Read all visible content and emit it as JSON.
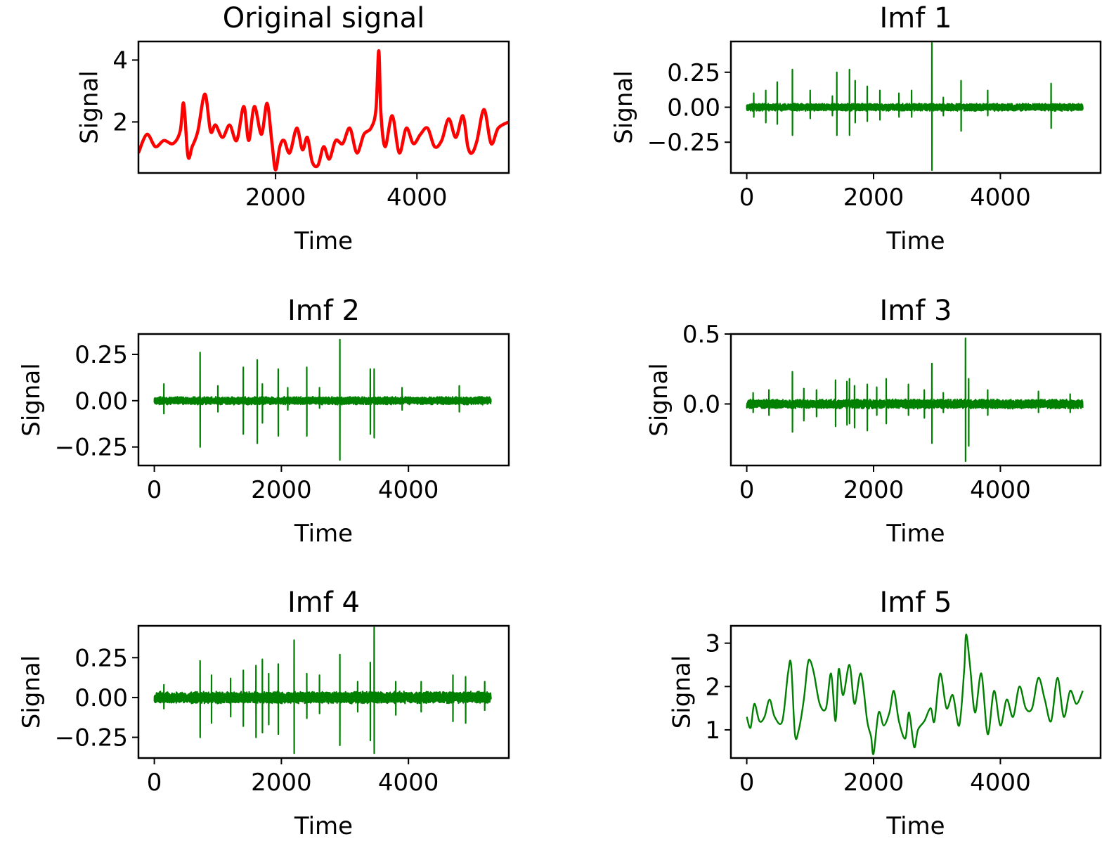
{
  "figure": {
    "line_colors": {
      "original": "#ff0000",
      "imf": "#008000"
    }
  },
  "chart_data": [
    {
      "type": "line",
      "title": "Original signal",
      "xlabel": "Time",
      "ylabel": "Signal",
      "color": "#ff0000",
      "xlim": [
        60,
        5300
      ],
      "ylim": [
        0.35,
        4.6
      ],
      "xticks": [
        2000,
        4000
      ],
      "xtick_labels": [
        "2000",
        "4000"
      ],
      "yticks": [
        2,
        4
      ],
      "ytick_labels": [
        "2",
        "4"
      ],
      "x_start": 60,
      "series": [
        {
          "name": "Original signal",
          "kind": "smooth",
          "x": [
            60,
            180,
            300,
            420,
            550,
            650,
            700,
            760,
            820,
            900,
            1000,
            1080,
            1150,
            1250,
            1350,
            1450,
            1550,
            1620,
            1700,
            1800,
            1880,
            1950,
            2000,
            2060,
            2120,
            2200,
            2300,
            2380,
            2450,
            2520,
            2600,
            2680,
            2760,
            2850,
            2950,
            3050,
            3150,
            3250,
            3350,
            3420,
            3460,
            3490,
            3550,
            3650,
            3750,
            3850,
            3950,
            4050,
            4150,
            4250,
            4350,
            4450,
            4550,
            4650,
            4720,
            4780,
            4850,
            4950,
            5050,
            5150,
            5300
          ],
          "y": [
            1.0,
            1.6,
            1.2,
            1.4,
            1.3,
            1.7,
            2.6,
            0.9,
            1.2,
            1.7,
            2.9,
            1.7,
            1.9,
            1.5,
            1.9,
            1.4,
            2.5,
            1.4,
            2.5,
            1.6,
            2.6,
            1.3,
            0.45,
            1.2,
            1.4,
            1.0,
            1.8,
            1.1,
            1.5,
            0.7,
            0.6,
            1.2,
            0.8,
            1.4,
            1.3,
            1.8,
            1.0,
            1.6,
            1.8,
            2.4,
            4.3,
            2.3,
            1.2,
            2.2,
            1.0,
            1.8,
            1.3,
            1.6,
            1.8,
            1.2,
            1.4,
            2.1,
            1.5,
            2.2,
            1.2,
            1.0,
            1.4,
            2.4,
            1.3,
            1.8,
            2.0
          ]
        }
      ]
    },
    {
      "type": "line",
      "title": "Imf 1",
      "xlabel": "Time",
      "ylabel": "Signal",
      "color": "#008000",
      "xlim": [
        -250,
        5580
      ],
      "ylim": [
        -0.47,
        0.47
      ],
      "xticks": [
        0,
        2000,
        4000
      ],
      "xtick_labels": [
        "0",
        "2000",
        "4000"
      ],
      "yticks": [
        -0.25,
        0,
        0.25
      ],
      "ytick_labels": [
        "−0.25",
        "0.00",
        "0.25"
      ],
      "n_points": 5300,
      "noise_amp": 0.02,
      "seed": 11,
      "spikes": [
        [
          110,
          0.1,
          -0.07
        ],
        [
          300,
          0.12,
          -0.11
        ],
        [
          480,
          0.18,
          -0.12
        ],
        [
          720,
          0.27,
          -0.2
        ],
        [
          1000,
          0.12,
          -0.08
        ],
        [
          1350,
          0.08,
          -0.06
        ],
        [
          1420,
          0.25,
          -0.2
        ],
        [
          1620,
          0.27,
          -0.2
        ],
        [
          1710,
          0.19,
          -0.11
        ],
        [
          1900,
          0.15,
          -0.1
        ],
        [
          2100,
          0.12,
          -0.09
        ],
        [
          2400,
          0.1,
          -0.07
        ],
        [
          2600,
          0.12,
          -0.07
        ],
        [
          2920,
          0.46,
          -0.45
        ],
        [
          3100,
          0.07,
          -0.06
        ],
        [
          3380,
          0.19,
          -0.17
        ],
        [
          3800,
          0.12,
          -0.06
        ],
        [
          4800,
          0.17,
          -0.15
        ]
      ]
    },
    {
      "type": "line",
      "title": "Imf 2",
      "xlabel": "Time",
      "ylabel": "Signal",
      "color": "#008000",
      "xlim": [
        -250,
        5580
      ],
      "ylim": [
        -0.35,
        0.36
      ],
      "xticks": [
        0,
        2000,
        4000
      ],
      "xtick_labels": [
        "0",
        "2000",
        "4000"
      ],
      "yticks": [
        -0.25,
        0,
        0.25
      ],
      "ytick_labels": [
        "−0.25",
        "0.00",
        "0.25"
      ],
      "n_points": 5300,
      "noise_amp": 0.016,
      "seed": 23,
      "spikes": [
        [
          150,
          0.09,
          -0.07
        ],
        [
          720,
          0.26,
          -0.25
        ],
        [
          1000,
          0.08,
          -0.06
        ],
        [
          1400,
          0.18,
          -0.18
        ],
        [
          1620,
          0.22,
          -0.23
        ],
        [
          1700,
          0.09,
          -0.12
        ],
        [
          1950,
          0.17,
          -0.19
        ],
        [
          2100,
          0.07,
          -0.05
        ],
        [
          2400,
          0.18,
          -0.19
        ],
        [
          2600,
          0.07,
          -0.04
        ],
        [
          2920,
          0.33,
          -0.32
        ],
        [
          3400,
          0.17,
          -0.18
        ],
        [
          3460,
          0.17,
          -0.2
        ],
        [
          3900,
          0.07,
          -0.05
        ],
        [
          4800,
          0.08,
          -0.06
        ]
      ]
    },
    {
      "type": "line",
      "title": "Imf 3",
      "xlabel": "Time",
      "ylabel": "Signal",
      "color": "#008000",
      "xlim": [
        -250,
        5580
      ],
      "ylim": [
        -0.44,
        0.5
      ],
      "xticks": [
        0,
        2000,
        4000
      ],
      "xtick_labels": [
        "0",
        "2000",
        "4000"
      ],
      "yticks": [
        0,
        0.5
      ],
      "ytick_labels": [
        "0.0",
        "0.5"
      ],
      "n_points": 5300,
      "noise_amp": 0.025,
      "seed": 37,
      "spikes": [
        [
          100,
          0.08,
          -0.06
        ],
        [
          350,
          0.1,
          -0.08
        ],
        [
          720,
          0.23,
          -0.2
        ],
        [
          900,
          0.11,
          -0.12
        ],
        [
          1100,
          0.1,
          -0.09
        ],
        [
          1400,
          0.17,
          -0.16
        ],
        [
          1580,
          0.16,
          -0.15
        ],
        [
          1620,
          0.18,
          -0.14
        ],
        [
          1700,
          0.13,
          -0.17
        ],
        [
          1900,
          0.14,
          -0.19
        ],
        [
          2050,
          0.12,
          -0.08
        ],
        [
          2200,
          0.18,
          -0.14
        ],
        [
          2550,
          0.14,
          -0.08
        ],
        [
          2800,
          0.1,
          -0.1
        ],
        [
          2920,
          0.29,
          -0.28
        ],
        [
          3100,
          0.08,
          -0.06
        ],
        [
          3450,
          0.47,
          -0.41
        ],
        [
          3500,
          0.18,
          -0.3
        ],
        [
          3800,
          0.1,
          -0.08
        ],
        [
          4600,
          0.09,
          -0.06
        ],
        [
          5100,
          0.07,
          -0.06
        ]
      ]
    },
    {
      "type": "line",
      "title": "Imf 4",
      "xlabel": "Time",
      "ylabel": "Signal",
      "color": "#008000",
      "xlim": [
        -250,
        5580
      ],
      "ylim": [
        -0.38,
        0.45
      ],
      "xticks": [
        0,
        2000,
        4000
      ],
      "xtick_labels": [
        "0",
        "2000",
        "4000"
      ],
      "yticks": [
        -0.25,
        0,
        0.25
      ],
      "ytick_labels": [
        "−0.25",
        "0.00",
        "0.25"
      ],
      "n_points": 5300,
      "noise_amp": 0.028,
      "seed": 53,
      "spikes": [
        [
          150,
          0.08,
          -0.07
        ],
        [
          720,
          0.23,
          -0.25
        ],
        [
          900,
          0.14,
          -0.16
        ],
        [
          1200,
          0.12,
          -0.12
        ],
        [
          1400,
          0.17,
          -0.18
        ],
        [
          1600,
          0.2,
          -0.25
        ],
        [
          1700,
          0.24,
          -0.22
        ],
        [
          1800,
          0.15,
          -0.17
        ],
        [
          1950,
          0.21,
          -0.23
        ],
        [
          2200,
          0.36,
          -0.35
        ],
        [
          2400,
          0.15,
          -0.13
        ],
        [
          2600,
          0.14,
          -0.1
        ],
        [
          2920,
          0.27,
          -0.3
        ],
        [
          3200,
          0.1,
          -0.09
        ],
        [
          3400,
          0.22,
          -0.27
        ],
        [
          3460,
          0.44,
          -0.35
        ],
        [
          3800,
          0.1,
          -0.11
        ],
        [
          4200,
          0.1,
          -0.09
        ],
        [
          4700,
          0.14,
          -0.15
        ],
        [
          4900,
          0.13,
          -0.16
        ],
        [
          5200,
          0.1,
          -0.08
        ]
      ]
    },
    {
      "type": "line",
      "title": "Imf 5",
      "xlabel": "Time",
      "ylabel": "Signal",
      "color": "#008000",
      "xlim": [
        -250,
        5580
      ],
      "ylim": [
        0.35,
        3.4
      ],
      "xticks": [
        0,
        2000,
        4000
      ],
      "xtick_labels": [
        "0",
        "2000",
        "4000"
      ],
      "yticks": [
        1,
        2,
        3
      ],
      "ytick_labels": [
        "1",
        "2",
        "3"
      ],
      "series": [
        {
          "name": "Imf 5",
          "kind": "smooth",
          "x": [
            0,
            60,
            120,
            200,
            280,
            360,
            440,
            560,
            650,
            700,
            760,
            820,
            900,
            960,
            1000,
            1060,
            1150,
            1250,
            1330,
            1400,
            1450,
            1520,
            1620,
            1700,
            1800,
            1900,
            1960,
            2000,
            2080,
            2160,
            2250,
            2320,
            2400,
            2500,
            2560,
            2640,
            2700,
            2800,
            2900,
            2960,
            3050,
            3150,
            3250,
            3350,
            3430,
            3460,
            3520,
            3600,
            3700,
            3800,
            3900,
            4000,
            4100,
            4200,
            4300,
            4400,
            4500,
            4600,
            4700,
            4800,
            4900,
            5000,
            5100,
            5200,
            5300
          ],
          "y": [
            1.3,
            1.05,
            1.6,
            1.2,
            1.3,
            1.7,
            1.3,
            1.2,
            2.3,
            2.5,
            0.9,
            1.0,
            1.7,
            2.5,
            2.6,
            2.3,
            1.6,
            1.5,
            2.3,
            1.2,
            2.4,
            1.8,
            2.5,
            1.6,
            2.3,
            1.2,
            0.85,
            0.45,
            1.4,
            1.1,
            1.4,
            1.9,
            1.2,
            0.8,
            1.4,
            0.6,
            1.0,
            1.2,
            1.5,
            1.2,
            2.3,
            1.5,
            1.8,
            1.1,
            2.4,
            3.2,
            2.5,
            1.4,
            2.3,
            0.9,
            1.9,
            1.1,
            1.7,
            1.3,
            2.0,
            1.5,
            1.5,
            2.2,
            1.7,
            1.2,
            2.2,
            1.3,
            1.9,
            1.6,
            1.9
          ]
        }
      ]
    }
  ]
}
